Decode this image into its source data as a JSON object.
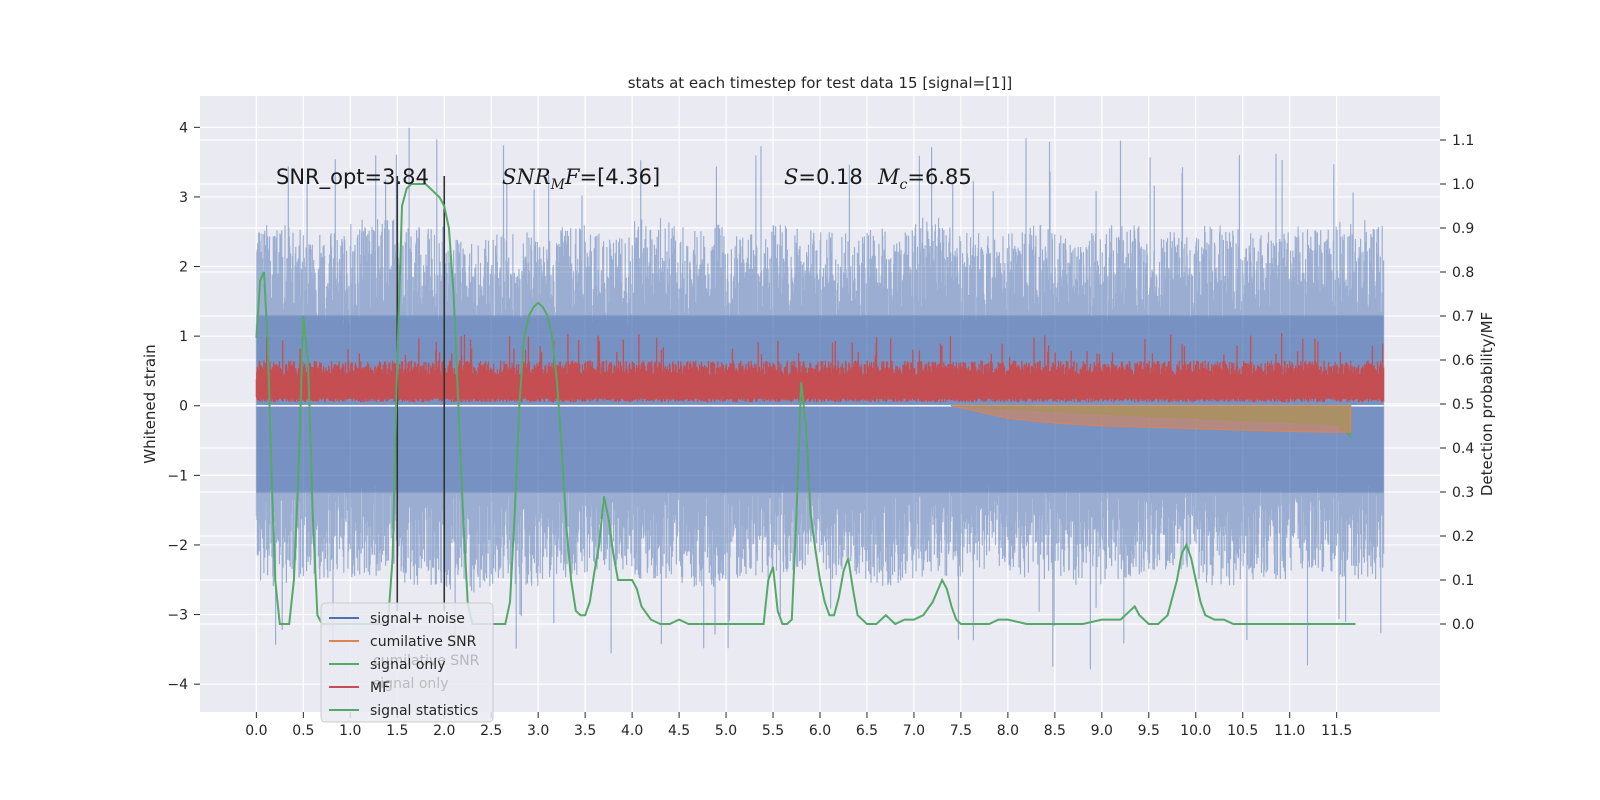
{
  "chart_data": {
    "type": "line",
    "title": "stats at each timestep for test data 15 [signal=[1]]",
    "xlabel": "",
    "ylabel": "Whitened strain",
    "ylabel_right": "Detection probability/MF",
    "xlim": [
      -0.6,
      12.6
    ],
    "ylim": [
      -4.4,
      4.45
    ],
    "ylim_right": [
      -0.2,
      1.2
    ],
    "xticks": [
      "0.0",
      "0.5",
      "1.0",
      "1.5",
      "2.0",
      "2.5",
      "3.0",
      "3.5",
      "4.0",
      "4.5",
      "5.0",
      "5.5",
      "6.0",
      "6.5",
      "7.0",
      "7.5",
      "8.0",
      "8.5",
      "9.0",
      "9.5",
      "10.0",
      "10.5",
      "11.0",
      "11.5"
    ],
    "yticks": [
      "4",
      "3",
      "2",
      "1",
      "0",
      "−1",
      "−2",
      "−3",
      "−4"
    ],
    "yticks_right": [
      "1.1",
      "1.0",
      "0.9",
      "0.8",
      "0.7",
      "0.6",
      "0.5",
      "0.4",
      "0.3",
      "0.2",
      "0.1",
      "0.0"
    ],
    "annotations": {
      "snr_opt": "SNR_opt=3.84",
      "snr_mf_base": "SNR",
      "snr_mf_sub": "M",
      "snr_mf_tail": "F",
      "snr_mf_value": "=[4.36]",
      "s_symbol": "S",
      "s_value": "=0.18",
      "mc_base": "M",
      "mc_sub": "c",
      "mc_value": "=6.85"
    },
    "vlines_x": [
      1.5,
      2.0
    ],
    "series": [
      {
        "name": "signal+ noise",
        "color": "#4c72b0",
        "axis": "left",
        "description": "whitened strain noise, approx uniform band",
        "band_low": [
          -2.6,
          -2.5,
          -2.5,
          -2.6,
          -2.7,
          -2.6,
          -2.5,
          -2.4,
          -2.5,
          -2.6,
          -2.5,
          -2.4,
          -2.5,
          -2.6,
          -2.5,
          -2.4,
          -2.5,
          -2.6,
          -2.5,
          -2.4,
          -2.6,
          -2.5,
          -2.4,
          -2.5
        ],
        "band_high": [
          2.6,
          2.5,
          2.7,
          2.6,
          2.4,
          2.5,
          2.6,
          2.5,
          2.7,
          2.6,
          2.5,
          2.6,
          2.5,
          2.6,
          2.7,
          2.5,
          2.6,
          2.5,
          2.6,
          2.5,
          2.6,
          2.5,
          2.6,
          2.7
        ]
      },
      {
        "name": "cumilative SNR",
        "color": "#dd8452",
        "axis": "left",
        "x": [
          7.4,
          8.0,
          8.5,
          9.0,
          9.5,
          10.0,
          10.5,
          11.0,
          11.5,
          11.65
        ],
        "y": [
          0.0,
          -0.18,
          -0.25,
          -0.29,
          -0.31,
          -0.33,
          -0.35,
          -0.37,
          -0.38,
          -0.38
        ]
      },
      {
        "name": "signal only",
        "color": "#55a868",
        "axis": "left",
        "x": [
          7.4,
          8.0,
          8.5,
          9.0,
          9.5,
          10.0,
          10.5,
          11.0,
          11.5,
          11.65
        ],
        "y": [
          0.0,
          -0.05,
          -0.08,
          -0.12,
          -0.15,
          -0.18,
          -0.21,
          -0.24,
          -0.27,
          -0.45
        ]
      },
      {
        "name": "MF",
        "color": "#c44e52",
        "axis": "left",
        "band_low": 0.05,
        "band_high": 0.65
      },
      {
        "name": "signal statistics",
        "color": "#55a868",
        "axis": "right",
        "x": [
          0.0,
          0.04,
          0.08,
          0.12,
          0.16,
          0.2,
          0.25,
          0.3,
          0.35,
          0.4,
          0.45,
          0.5,
          0.55,
          0.6,
          0.65,
          0.7,
          0.75,
          0.8,
          0.85,
          0.9,
          0.95,
          1.0,
          1.05,
          1.1,
          1.15,
          1.2,
          1.25,
          1.3,
          1.35,
          1.4,
          1.45,
          1.5,
          1.55,
          1.6,
          1.65,
          1.7,
          1.75,
          1.8,
          1.85,
          1.9,
          1.95,
          2.0,
          2.05,
          2.1,
          2.15,
          2.2,
          2.25,
          2.3,
          2.35,
          2.4,
          2.45,
          2.5,
          2.55,
          2.6,
          2.65,
          2.7,
          2.75,
          2.8,
          2.85,
          2.9,
          2.95,
          3.0,
          3.05,
          3.1,
          3.15,
          3.2,
          3.25,
          3.3,
          3.35,
          3.4,
          3.45,
          3.5,
          3.55,
          3.6,
          3.65,
          3.7,
          3.75,
          3.8,
          3.85,
          3.9,
          3.95,
          4.0,
          4.05,
          4.1,
          4.2,
          4.3,
          4.4,
          4.5,
          4.6,
          4.8,
          5.0,
          5.2,
          5.4,
          5.45,
          5.5,
          5.55,
          5.6,
          5.65,
          5.7,
          5.75,
          5.8,
          5.85,
          5.9,
          5.95,
          6.0,
          6.05,
          6.1,
          6.15,
          6.2,
          6.25,
          6.3,
          6.35,
          6.4,
          6.5,
          6.6,
          6.7,
          6.8,
          6.9,
          7.0,
          7.1,
          7.2,
          7.3,
          7.35,
          7.4,
          7.45,
          7.5,
          7.6,
          7.7,
          7.8,
          7.9,
          8.0,
          8.2,
          8.4,
          8.6,
          8.8,
          9.0,
          9.2,
          9.3,
          9.35,
          9.4,
          9.45,
          9.5,
          9.6,
          9.7,
          9.8,
          9.85,
          9.9,
          9.95,
          10.0,
          10.05,
          10.1,
          10.2,
          10.3,
          10.4,
          10.6,
          10.8,
          11.0,
          11.2,
          11.4,
          11.6,
          11.7
        ],
        "y": [
          0.65,
          0.78,
          0.8,
          0.65,
          0.35,
          0.1,
          0.0,
          0.0,
          0.0,
          0.1,
          0.35,
          0.7,
          0.6,
          0.25,
          0.02,
          0.0,
          0.0,
          0.0,
          0.0,
          0.0,
          0.0,
          0.0,
          0.0,
          0.0,
          0.0,
          0.0,
          0.0,
          0.0,
          0.0,
          0.0,
          0.15,
          0.6,
          0.95,
          0.99,
          1.0,
          1.0,
          1.0,
          1.0,
          0.99,
          0.98,
          0.97,
          0.95,
          0.9,
          0.75,
          0.5,
          0.25,
          0.05,
          0.0,
          0.0,
          0.0,
          0.0,
          0.0,
          0.0,
          0.0,
          0.0,
          0.05,
          0.25,
          0.5,
          0.65,
          0.7,
          0.72,
          0.73,
          0.72,
          0.7,
          0.65,
          0.55,
          0.4,
          0.22,
          0.1,
          0.03,
          0.02,
          0.02,
          0.05,
          0.12,
          0.18,
          0.29,
          0.24,
          0.16,
          0.1,
          0.1,
          0.1,
          0.1,
          0.08,
          0.04,
          0.01,
          0.0,
          0.0,
          0.01,
          0.0,
          0.0,
          0.0,
          0.0,
          0.0,
          0.1,
          0.13,
          0.03,
          0.0,
          0.0,
          0.01,
          0.25,
          0.55,
          0.45,
          0.25,
          0.17,
          0.1,
          0.05,
          0.02,
          0.02,
          0.06,
          0.12,
          0.15,
          0.08,
          0.02,
          0.0,
          0.0,
          0.02,
          0.0,
          0.01,
          0.01,
          0.02,
          0.05,
          0.1,
          0.08,
          0.04,
          0.01,
          0.0,
          0.0,
          0.0,
          0.0,
          0.01,
          0.01,
          0.0,
          0.0,
          0.0,
          0.0,
          0.01,
          0.01,
          0.03,
          0.04,
          0.02,
          0.01,
          0.0,
          0.0,
          0.02,
          0.1,
          0.16,
          0.18,
          0.15,
          0.1,
          0.05,
          0.02,
          0.01,
          0.01,
          0.0,
          0.0,
          0.0,
          0.0,
          0.0,
          0.0,
          0.0,
          0.0
        ]
      }
    ],
    "legend": {
      "placement": "lower-left",
      "entries": [
        {
          "label": "signal+ noise",
          "color": "#4c72b0"
        },
        {
          "label": "cumilative SNR",
          "color": "#dd8452"
        },
        {
          "label": "signal only",
          "color": "#55a868"
        },
        {
          "label": "MF",
          "color": "#c44e52"
        },
        {
          "label": "signal statistics",
          "color": "#55a868"
        }
      ],
      "ghost_entries": [
        "cumilative SNR",
        "signal only"
      ]
    }
  }
}
